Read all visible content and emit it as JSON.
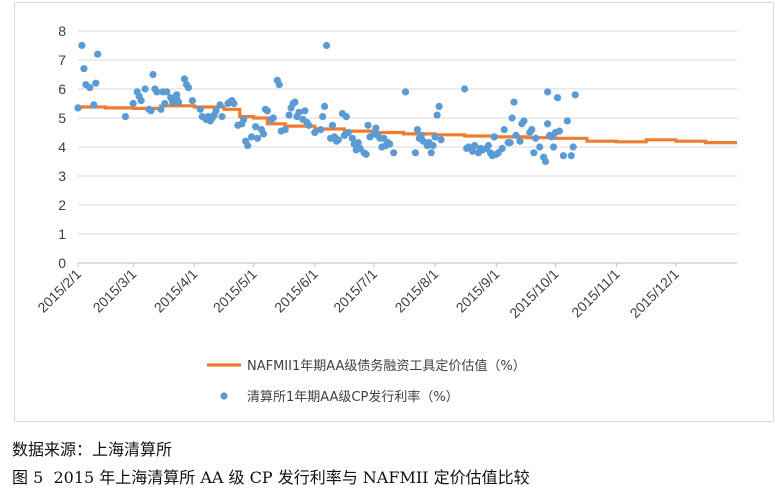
{
  "chart_data": {
    "type": "line+scatter",
    "title": "",
    "xlabel": "",
    "ylabel": "",
    "ylim": [
      0,
      8
    ],
    "yticks": [
      "0",
      "1",
      "2",
      "3",
      "4",
      "5",
      "6",
      "7",
      "8"
    ],
    "x_range_days": [
      0,
      334
    ],
    "x_tick_labels": [
      {
        "label": "2015/2/1",
        "day": 0
      },
      {
        "label": "2015/3/1",
        "day": 28
      },
      {
        "label": "2015/4/1",
        "day": 59
      },
      {
        "label": "2015/5/1",
        "day": 89
      },
      {
        "label": "2015/6/1",
        "day": 120
      },
      {
        "label": "2015/7/1",
        "day": 150
      },
      {
        "label": "2015/8/1",
        "day": 181
      },
      {
        "label": "2015/9/1",
        "day": 212
      },
      {
        "label": "2015/10/1",
        "day": 242
      },
      {
        "label": "2015/11/1",
        "day": 273
      },
      {
        "label": "2015/12/1",
        "day": 303
      }
    ],
    "series": [
      {
        "name": "NAFMII1年期AA级债务融资工具定价估值（%）",
        "type": "step-line",
        "color": "#ED7D31",
        "points": [
          [
            0,
            5.38
          ],
          [
            14,
            5.38
          ],
          [
            14,
            5.35
          ],
          [
            28,
            5.35
          ],
          [
            28,
            5.33
          ],
          [
            42,
            5.33
          ],
          [
            42,
            5.42
          ],
          [
            59,
            5.42
          ],
          [
            59,
            5.38
          ],
          [
            74,
            5.38
          ],
          [
            74,
            5.3
          ],
          [
            82,
            5.3
          ],
          [
            82,
            5.05
          ],
          [
            89,
            5.05
          ],
          [
            89,
            5.0
          ],
          [
            96,
            5.0
          ],
          [
            96,
            4.8
          ],
          [
            105,
            4.8
          ],
          [
            105,
            4.72
          ],
          [
            120,
            4.72
          ],
          [
            120,
            4.62
          ],
          [
            135,
            4.62
          ],
          [
            135,
            4.55
          ],
          [
            150,
            4.55
          ],
          [
            150,
            4.5
          ],
          [
            165,
            4.5
          ],
          [
            165,
            4.45
          ],
          [
            181,
            4.45
          ],
          [
            181,
            4.42
          ],
          [
            196,
            4.42
          ],
          [
            196,
            4.38
          ],
          [
            212,
            4.38
          ],
          [
            212,
            4.35
          ],
          [
            227,
            4.35
          ],
          [
            227,
            4.32
          ],
          [
            242,
            4.32
          ],
          [
            242,
            4.3
          ],
          [
            258,
            4.3
          ],
          [
            258,
            4.2
          ],
          [
            273,
            4.2
          ],
          [
            273,
            4.18
          ],
          [
            288,
            4.18
          ],
          [
            288,
            4.25
          ],
          [
            303,
            4.25
          ],
          [
            303,
            4.2
          ],
          [
            318,
            4.2
          ],
          [
            318,
            4.15
          ],
          [
            334,
            4.15
          ]
        ]
      },
      {
        "name": "清算所1年期AA级CP发行利率（%）",
        "type": "scatter",
        "color": "#5B9BD5",
        "points": [
          [
            0,
            5.35
          ],
          [
            2,
            7.5
          ],
          [
            3,
            6.7
          ],
          [
            4,
            6.15
          ],
          [
            6,
            6.05
          ],
          [
            8,
            5.45
          ],
          [
            9,
            6.2
          ],
          [
            10,
            7.2
          ],
          [
            24,
            5.05
          ],
          [
            28,
            5.5
          ],
          [
            30,
            5.9
          ],
          [
            31,
            5.75
          ],
          [
            32,
            5.6
          ],
          [
            34,
            6.0
          ],
          [
            36,
            5.3
          ],
          [
            37,
            5.25
          ],
          [
            38,
            6.5
          ],
          [
            39,
            6.0
          ],
          [
            40,
            5.9
          ],
          [
            42,
            5.3
          ],
          [
            43,
            5.9
          ],
          [
            44,
            5.5
          ],
          [
            45,
            5.9
          ],
          [
            47,
            5.7
          ],
          [
            48,
            5.55
          ],
          [
            50,
            5.8
          ],
          [
            50,
            5.65
          ],
          [
            51,
            5.55
          ],
          [
            54,
            6.35
          ],
          [
            55,
            6.15
          ],
          [
            56,
            6.05
          ],
          [
            58,
            5.6
          ],
          [
            62,
            5.3
          ],
          [
            63,
            5.05
          ],
          [
            65,
            4.95
          ],
          [
            66,
            5.05
          ],
          [
            67,
            4.9
          ],
          [
            68,
            5.0
          ],
          [
            69,
            5.1
          ],
          [
            70,
            5.25
          ],
          [
            72,
            5.45
          ],
          [
            73,
            5.05
          ],
          [
            76,
            5.5
          ],
          [
            77,
            5.55
          ],
          [
            78,
            5.6
          ],
          [
            79,
            5.5
          ],
          [
            81,
            4.75
          ],
          [
            83,
            4.8
          ],
          [
            84,
            4.95
          ],
          [
            85,
            4.2
          ],
          [
            86,
            4.05
          ],
          [
            88,
            4.35
          ],
          [
            90,
            4.7
          ],
          [
            91,
            4.3
          ],
          [
            93,
            4.6
          ],
          [
            94,
            4.45
          ],
          [
            95,
            5.3
          ],
          [
            96,
            5.25
          ],
          [
            98,
            4.95
          ],
          [
            99,
            5.0
          ],
          [
            101,
            6.3
          ],
          [
            102,
            6.15
          ],
          [
            103,
            4.55
          ],
          [
            105,
            4.6
          ],
          [
            107,
            5.1
          ],
          [
            108,
            5.35
          ],
          [
            109,
            5.5
          ],
          [
            110,
            5.55
          ],
          [
            111,
            5.05
          ],
          [
            112,
            5.2
          ],
          [
            114,
            4.95
          ],
          [
            115,
            5.25
          ],
          [
            116,
            4.85
          ],
          [
            117,
            4.75
          ],
          [
            120,
            4.5
          ],
          [
            123,
            4.6
          ],
          [
            124,
            5.05
          ],
          [
            125,
            5.4
          ],
          [
            126,
            7.5
          ],
          [
            128,
            4.3
          ],
          [
            129,
            4.75
          ],
          [
            130,
            4.35
          ],
          [
            131,
            4.2
          ],
          [
            132,
            4.25
          ],
          [
            134,
            5.15
          ],
          [
            135,
            4.4
          ],
          [
            136,
            5.05
          ],
          [
            137,
            4.5
          ],
          [
            139,
            4.3
          ],
          [
            140,
            4.1
          ],
          [
            141,
            3.9
          ],
          [
            142,
            4.15
          ],
          [
            143,
            3.95
          ],
          [
            145,
            3.8
          ],
          [
            146,
            3.75
          ],
          [
            147,
            4.75
          ],
          [
            148,
            4.35
          ],
          [
            150,
            4.45
          ],
          [
            151,
            4.65
          ],
          [
            152,
            4.4
          ],
          [
            153,
            4.3
          ],
          [
            154,
            4.0
          ],
          [
            155,
            4.3
          ],
          [
            156,
            4.05
          ],
          [
            157,
            4.15
          ],
          [
            158,
            4.1
          ],
          [
            160,
            3.8
          ],
          [
            166,
            5.9
          ],
          [
            171,
            3.8
          ],
          [
            172,
            4.6
          ],
          [
            173,
            4.3
          ],
          [
            174,
            4.4
          ],
          [
            175,
            4.2
          ],
          [
            177,
            4.05
          ],
          [
            178,
            4.15
          ],
          [
            179,
            3.8
          ],
          [
            180,
            4.05
          ],
          [
            181,
            4.35
          ],
          [
            182,
            5.1
          ],
          [
            183,
            5.4
          ],
          [
            184,
            4.25
          ],
          [
            196,
            6.0
          ],
          [
            197,
            3.95
          ],
          [
            198,
            4.0
          ],
          [
            200,
            3.85
          ],
          [
            201,
            4.05
          ],
          [
            203,
            3.8
          ],
          [
            204,
            3.95
          ],
          [
            205,
            3.9
          ],
          [
            207,
            3.95
          ],
          [
            208,
            4.05
          ],
          [
            209,
            3.8
          ],
          [
            210,
            3.7
          ],
          [
            211,
            4.35
          ],
          [
            212,
            3.75
          ],
          [
            213,
            3.8
          ],
          [
            215,
            3.95
          ],
          [
            216,
            4.6
          ],
          [
            218,
            4.15
          ],
          [
            219,
            4.15
          ],
          [
            220,
            5.0
          ],
          [
            221,
            5.55
          ],
          [
            222,
            4.4
          ],
          [
            224,
            4.2
          ],
          [
            225,
            4.8
          ],
          [
            226,
            4.9
          ],
          [
            229,
            4.5
          ],
          [
            230,
            4.6
          ],
          [
            231,
            3.8
          ],
          [
            232,
            4.3
          ],
          [
            234,
            4.0
          ],
          [
            236,
            3.65
          ],
          [
            237,
            3.5
          ],
          [
            238,
            5.9
          ],
          [
            238,
            4.8
          ],
          [
            239,
            4.4
          ],
          [
            240,
            4.35
          ],
          [
            241,
            4.0
          ],
          [
            242,
            4.5
          ],
          [
            243,
            5.7
          ],
          [
            244,
            4.55
          ],
          [
            246,
            3.7
          ],
          [
            248,
            4.9
          ],
          [
            250,
            3.7
          ],
          [
            251,
            4.0
          ],
          [
            252,
            5.8
          ]
        ]
      }
    ]
  },
  "captions": {
    "source": "数据来源：上海清算所",
    "figure_label": "图 5",
    "figure_title": "2015 年上海清算所 AA 级 CP 发行利率与 NAFMII 定价估值比较"
  }
}
